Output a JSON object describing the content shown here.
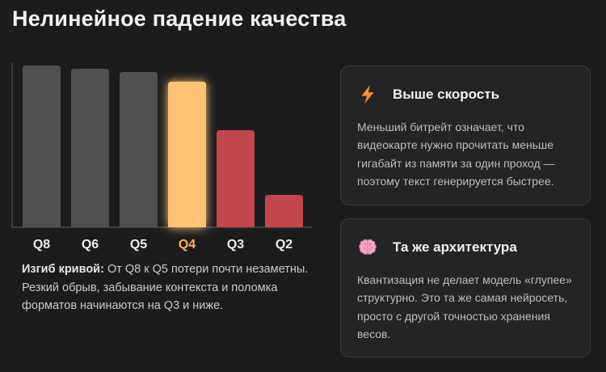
{
  "title": "Нелинейное падение качества",
  "chart_data": {
    "type": "bar",
    "categories": [
      "Q8",
      "Q6",
      "Q5",
      "Q4",
      "Q3",
      "Q2"
    ],
    "values": [
      100,
      98,
      96,
      90,
      60,
      20
    ],
    "ylim": [
      0,
      100
    ],
    "highlight": "Q4",
    "colors": {
      "neutral": "#505050",
      "highlight": "#ffc175",
      "bad": "#c2474c",
      "highlight_label": "#ffb15c",
      "label": "#ededed"
    },
    "bar_color_groups": [
      "neutral",
      "neutral",
      "neutral",
      "highlight",
      "bad",
      "bad"
    ]
  },
  "note": {
    "lead": "Изгиб кривой:",
    "text": " От Q8 к Q5 потери почти незаметны. Резкий обрыв, забывание контекста и поломка форматов начинаются на Q3 и ниже."
  },
  "cards": [
    {
      "icon": "lightning-icon",
      "title": "Выше скорость",
      "text": "Меньший битрейт означает, что видеокарте нужно прочитать меньше гигабайт из памяти за один проход — поэтому текст генерируется быстрее."
    },
    {
      "icon": "brain-icon",
      "title": "Та же архитектура",
      "text": "Квантизация не делает модель «глупее» структурно. Это та же самая нейросеть, просто с другой точностью хранения весов."
    }
  ]
}
